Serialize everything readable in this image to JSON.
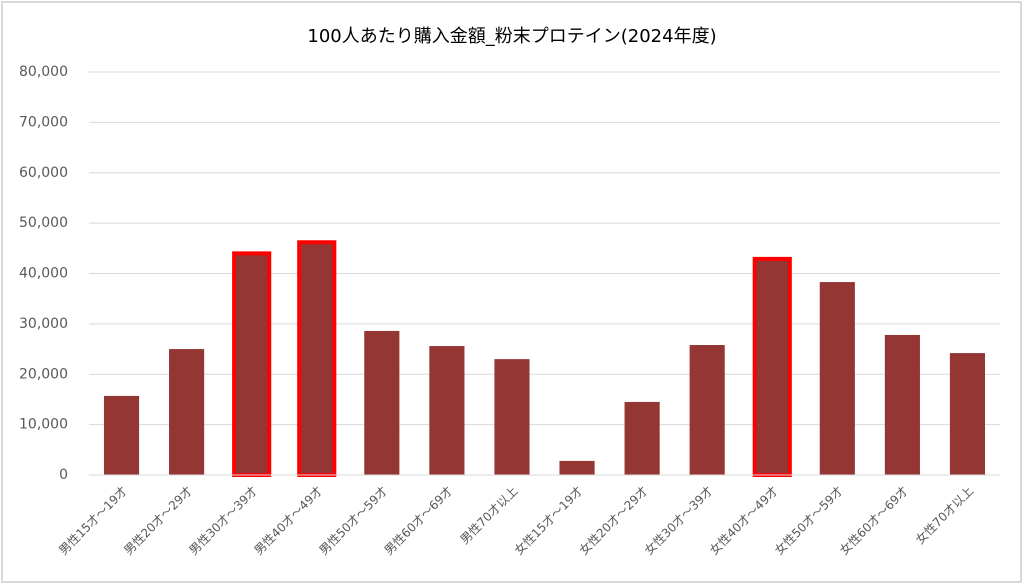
{
  "chart_data": {
    "type": "bar",
    "title": "100人あたり購入金額_粉末プロテイン(2024年度)",
    "categories": [
      "男性15才～19才",
      "男性20才～29才",
      "男性30才～39才",
      "男性40才～49才",
      "男性50才～59才",
      "男性60才～69才",
      "男性70才以上",
      "女性15才～19才",
      "女性20才～29才",
      "女性30才～39才",
      "女性40才～49才",
      "女性50才～59才",
      "女性60才～69才",
      "女性70才以上"
    ],
    "values": [
      15700,
      25000,
      44000,
      46200,
      28600,
      25600,
      23000,
      2800,
      14500,
      25800,
      42900,
      38300,
      27800,
      24200
    ],
    "color": "#943634",
    "highlight": [
      2,
      3,
      10
    ],
    "highlight_color": "#ff0000",
    "ylim": [
      0,
      80000
    ],
    "yticks": [
      0,
      {
        "value": 10000,
        "label": "10,000"
      },
      {
        "value": 20000,
        "label": "20,000"
      },
      {
        "value": 30000,
        "label": "30,000"
      },
      {
        "value": 40000,
        "label": "40,000"
      },
      {
        "value": 50000,
        "label": "50,000"
      },
      {
        "value": 60000,
        "label": "60,000"
      },
      {
        "value": 70000,
        "label": "70,000"
      },
      {
        "value": 80000,
        "label": "80,000"
      }
    ],
    "grid": true
  }
}
